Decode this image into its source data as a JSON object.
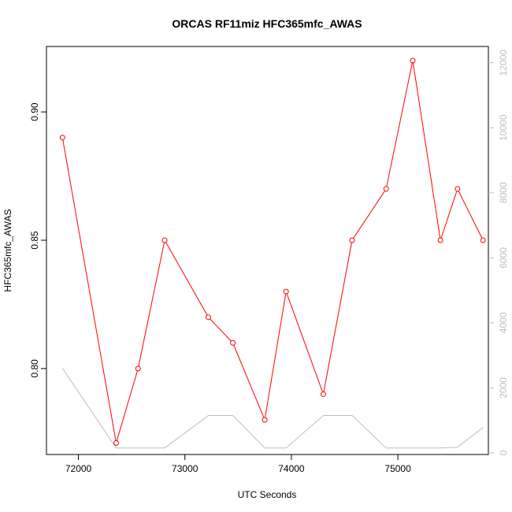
{
  "chart_data": {
    "type": "line",
    "title": "ORCAS RF11miz HFC365mfc_AWAS",
    "xlabel": "UTC Seconds",
    "ylabel": "HFC365mfc_AWAS",
    "xlim": [
      71700,
      75850
    ],
    "ylim": [
      0.7665,
      0.9255
    ],
    "y2lim": [
      -50,
      12500
    ],
    "x_ticks": [
      72000,
      73000,
      74000,
      75000
    ],
    "y_ticks": [
      0.8,
      0.85,
      0.9
    ],
    "y2_ticks": [
      0,
      2000,
      4000,
      6000,
      8000,
      10000,
      12000
    ],
    "x_tick_labels": [
      "72000",
      "73000",
      "74000",
      "75000"
    ],
    "y_tick_labels": [
      "0.80",
      "0.85",
      "0.90"
    ],
    "y2_tick_labels": [
      "0",
      "2000",
      "4000",
      "6000",
      "8000",
      "10000",
      "12000"
    ],
    "grid": false,
    "series": [
      {
        "color": "#ff0000",
        "axis": "left",
        "markers": true,
        "x": [
          71850,
          72355,
          72560,
          72810,
          73220,
          73450,
          73750,
          73950,
          74300,
          74570,
          74890,
          75140,
          75400,
          75560,
          75800
        ],
        "y": [
          0.89,
          0.771,
          0.8,
          0.85,
          0.82,
          0.81,
          0.78,
          0.83,
          0.79,
          0.85,
          0.87,
          0.92,
          0.85,
          0.87,
          0.85
        ]
      },
      {
        "color": "#bebebe",
        "axis": "right",
        "markers": false,
        "x": [
          71850,
          72355,
          72560,
          72810,
          73220,
          73450,
          73750,
          73950,
          74300,
          74570,
          74890,
          75140,
          75400,
          75560,
          75800
        ],
        "y": [
          2600,
          150,
          150,
          150,
          1150,
          1150,
          150,
          150,
          1150,
          1150,
          150,
          150,
          150,
          170,
          780
        ]
      }
    ]
  }
}
